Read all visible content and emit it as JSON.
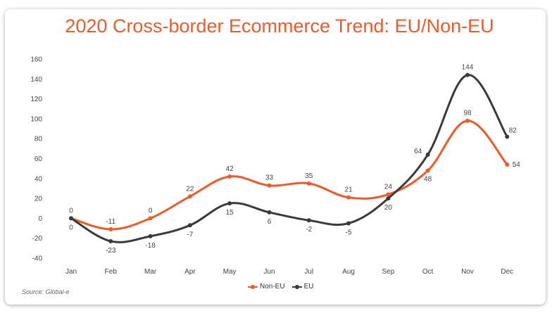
{
  "chart_data": {
    "type": "line",
    "title": "2020 Cross-border Ecommerce Trend: EU/Non-EU",
    "categories": [
      "Jan",
      "Feb",
      "Mar",
      "Apr",
      "May",
      "Jun",
      "Jul",
      "Aug",
      "Sep",
      "Oct",
      "Nov",
      "Dec"
    ],
    "series": [
      {
        "name": "Non-EU",
        "color": "#f05a28",
        "values": [
          0,
          -11,
          0,
          22,
          42,
          33,
          35,
          21,
          24,
          48,
          98,
          54
        ],
        "labels": [
          "0",
          "-11",
          "0",
          "22",
          "42",
          "33",
          "35",
          "21",
          "24",
          "48",
          "98",
          "54"
        ]
      },
      {
        "name": "EU",
        "color": "#3a3a3a",
        "values": [
          0,
          -23,
          -18,
          -7,
          15,
          6,
          -2,
          -5,
          20,
          64,
          144,
          82
        ],
        "labels": [
          "0",
          "-23",
          "-18",
          "-7",
          "15",
          "6",
          "-2",
          "-5",
          "20",
          "64",
          "144",
          "82"
        ]
      }
    ],
    "ylim": [
      -40,
      160
    ],
    "yticks": [
      "160",
      "140",
      "120",
      "100",
      "80",
      "60",
      "40",
      "20",
      "0",
      "-20",
      "-40"
    ],
    "ytick_values": [
      160,
      140,
      120,
      100,
      80,
      60,
      40,
      20,
      0,
      -20,
      -40
    ],
    "grid": false,
    "legend_position": "bottom-center",
    "source": "Source: Global-e"
  }
}
